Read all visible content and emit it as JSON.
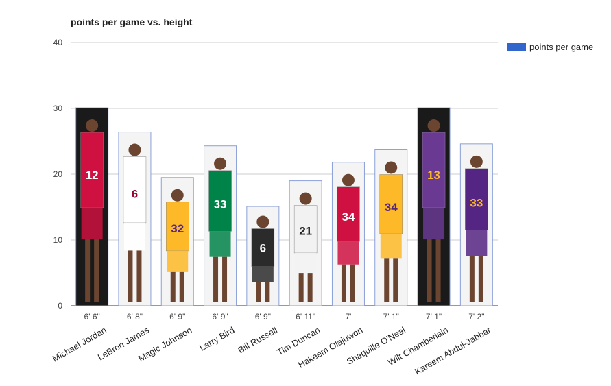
{
  "chart_data": {
    "type": "bar",
    "title": "points per game vs. height",
    "xlabel": "",
    "ylabel": "",
    "ylim": [
      0,
      40
    ],
    "yticks": [
      0,
      10,
      20,
      30,
      40
    ],
    "grid": true,
    "legend_position": "right",
    "players": [
      "Michael Jordan",
      "LeBron James",
      "Magic Johnson",
      "Larry Bird",
      "Bill Russell",
      "Tim Duncan",
      "Hakeem Olajuwon",
      "Shaquille O'Neal",
      "Wilt Chamberlain",
      "Kareem Abdul-Jabbar"
    ],
    "categories": [
      "6' 6\"",
      "6' 8\"",
      "6' 9\"",
      "6' 9\"",
      "6' 9\"",
      "6' 11\"",
      "7'",
      "7' 1\"",
      "7' 1\"",
      "7' 2\""
    ],
    "series": [
      {
        "name": "points per game",
        "color": "#3366cc",
        "values": [
          30.1,
          26.4,
          19.5,
          24.3,
          15.1,
          19.0,
          21.8,
          23.7,
          30.1,
          24.6
        ]
      }
    ],
    "bar_fill_style": "player-photo",
    "jersey_numbers": [
      "12",
      "6",
      "32",
      "33",
      "6",
      "21",
      "34",
      "34",
      "13",
      "33"
    ],
    "jersey_colors": [
      "#ce1141",
      "#ffffff",
      "#fdb927",
      "#008348",
      "#2b2b2b",
      "#f2f2f2",
      "#ce1141",
      "#fdb927",
      "#6a3a92",
      "#552583"
    ],
    "jersey_text_colors": [
      "#ffffff",
      "#98002e",
      "#552583",
      "#ffffff",
      "#ffffff",
      "#222222",
      "#ffffff",
      "#552583",
      "#fdb927",
      "#fdb927"
    ]
  }
}
